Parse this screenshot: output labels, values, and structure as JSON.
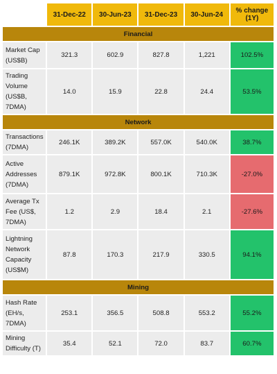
{
  "header": {
    "dates": [
      "31-Dec-22",
      "30-Jun-23",
      "31-Dec-23",
      "30-Jun-24"
    ],
    "change_label": "% change (1Y)"
  },
  "sections": [
    {
      "title": "Financial",
      "rows": [
        {
          "label": "Market Cap (US$B)",
          "values": [
            "321.3",
            "602.9",
            "827.8",
            "1,221"
          ],
          "change": "102.5%",
          "direction": "up"
        },
        {
          "label": "Trading Volume (US$B, 7DMA)",
          "values": [
            "14.0",
            "15.9",
            "22.8",
            "24.4"
          ],
          "change": "53.5%",
          "direction": "up"
        }
      ]
    },
    {
      "title": "Network",
      "rows": [
        {
          "label": "Transactions (7DMA)",
          "values": [
            "246.1K",
            "389.2K",
            "557.0K",
            "540.0K"
          ],
          "change": "38.7%",
          "direction": "up"
        },
        {
          "label": "Active Addresses (7DMA)",
          "values": [
            "879.1K",
            "972.8K",
            "800.1K",
            "710.3K"
          ],
          "change": "-27.0%",
          "direction": "down"
        },
        {
          "label": "Average Tx Fee (US$, 7DMA)",
          "values": [
            "1.2",
            "2.9",
            "18.4",
            "2.1"
          ],
          "change": "-27.6%",
          "direction": "down"
        },
        {
          "label": "Lightning Network Capacity (US$M)",
          "values": [
            "87.8",
            "170.3",
            "217.9",
            "330.5"
          ],
          "change": "94.1%",
          "direction": "up"
        }
      ]
    },
    {
      "title": "Mining",
      "rows": [
        {
          "label": "Hash Rate (EH/s, 7DMA)",
          "values": [
            "253.1",
            "356.5",
            "508.8",
            "553.2"
          ],
          "change": "55.2%",
          "direction": "up"
        },
        {
          "label": "Mining Difficulty (T)",
          "values": [
            "35.4",
            "52.1",
            "72.0",
            "83.7"
          ],
          "change": "60.7%",
          "direction": "up"
        }
      ]
    }
  ]
}
